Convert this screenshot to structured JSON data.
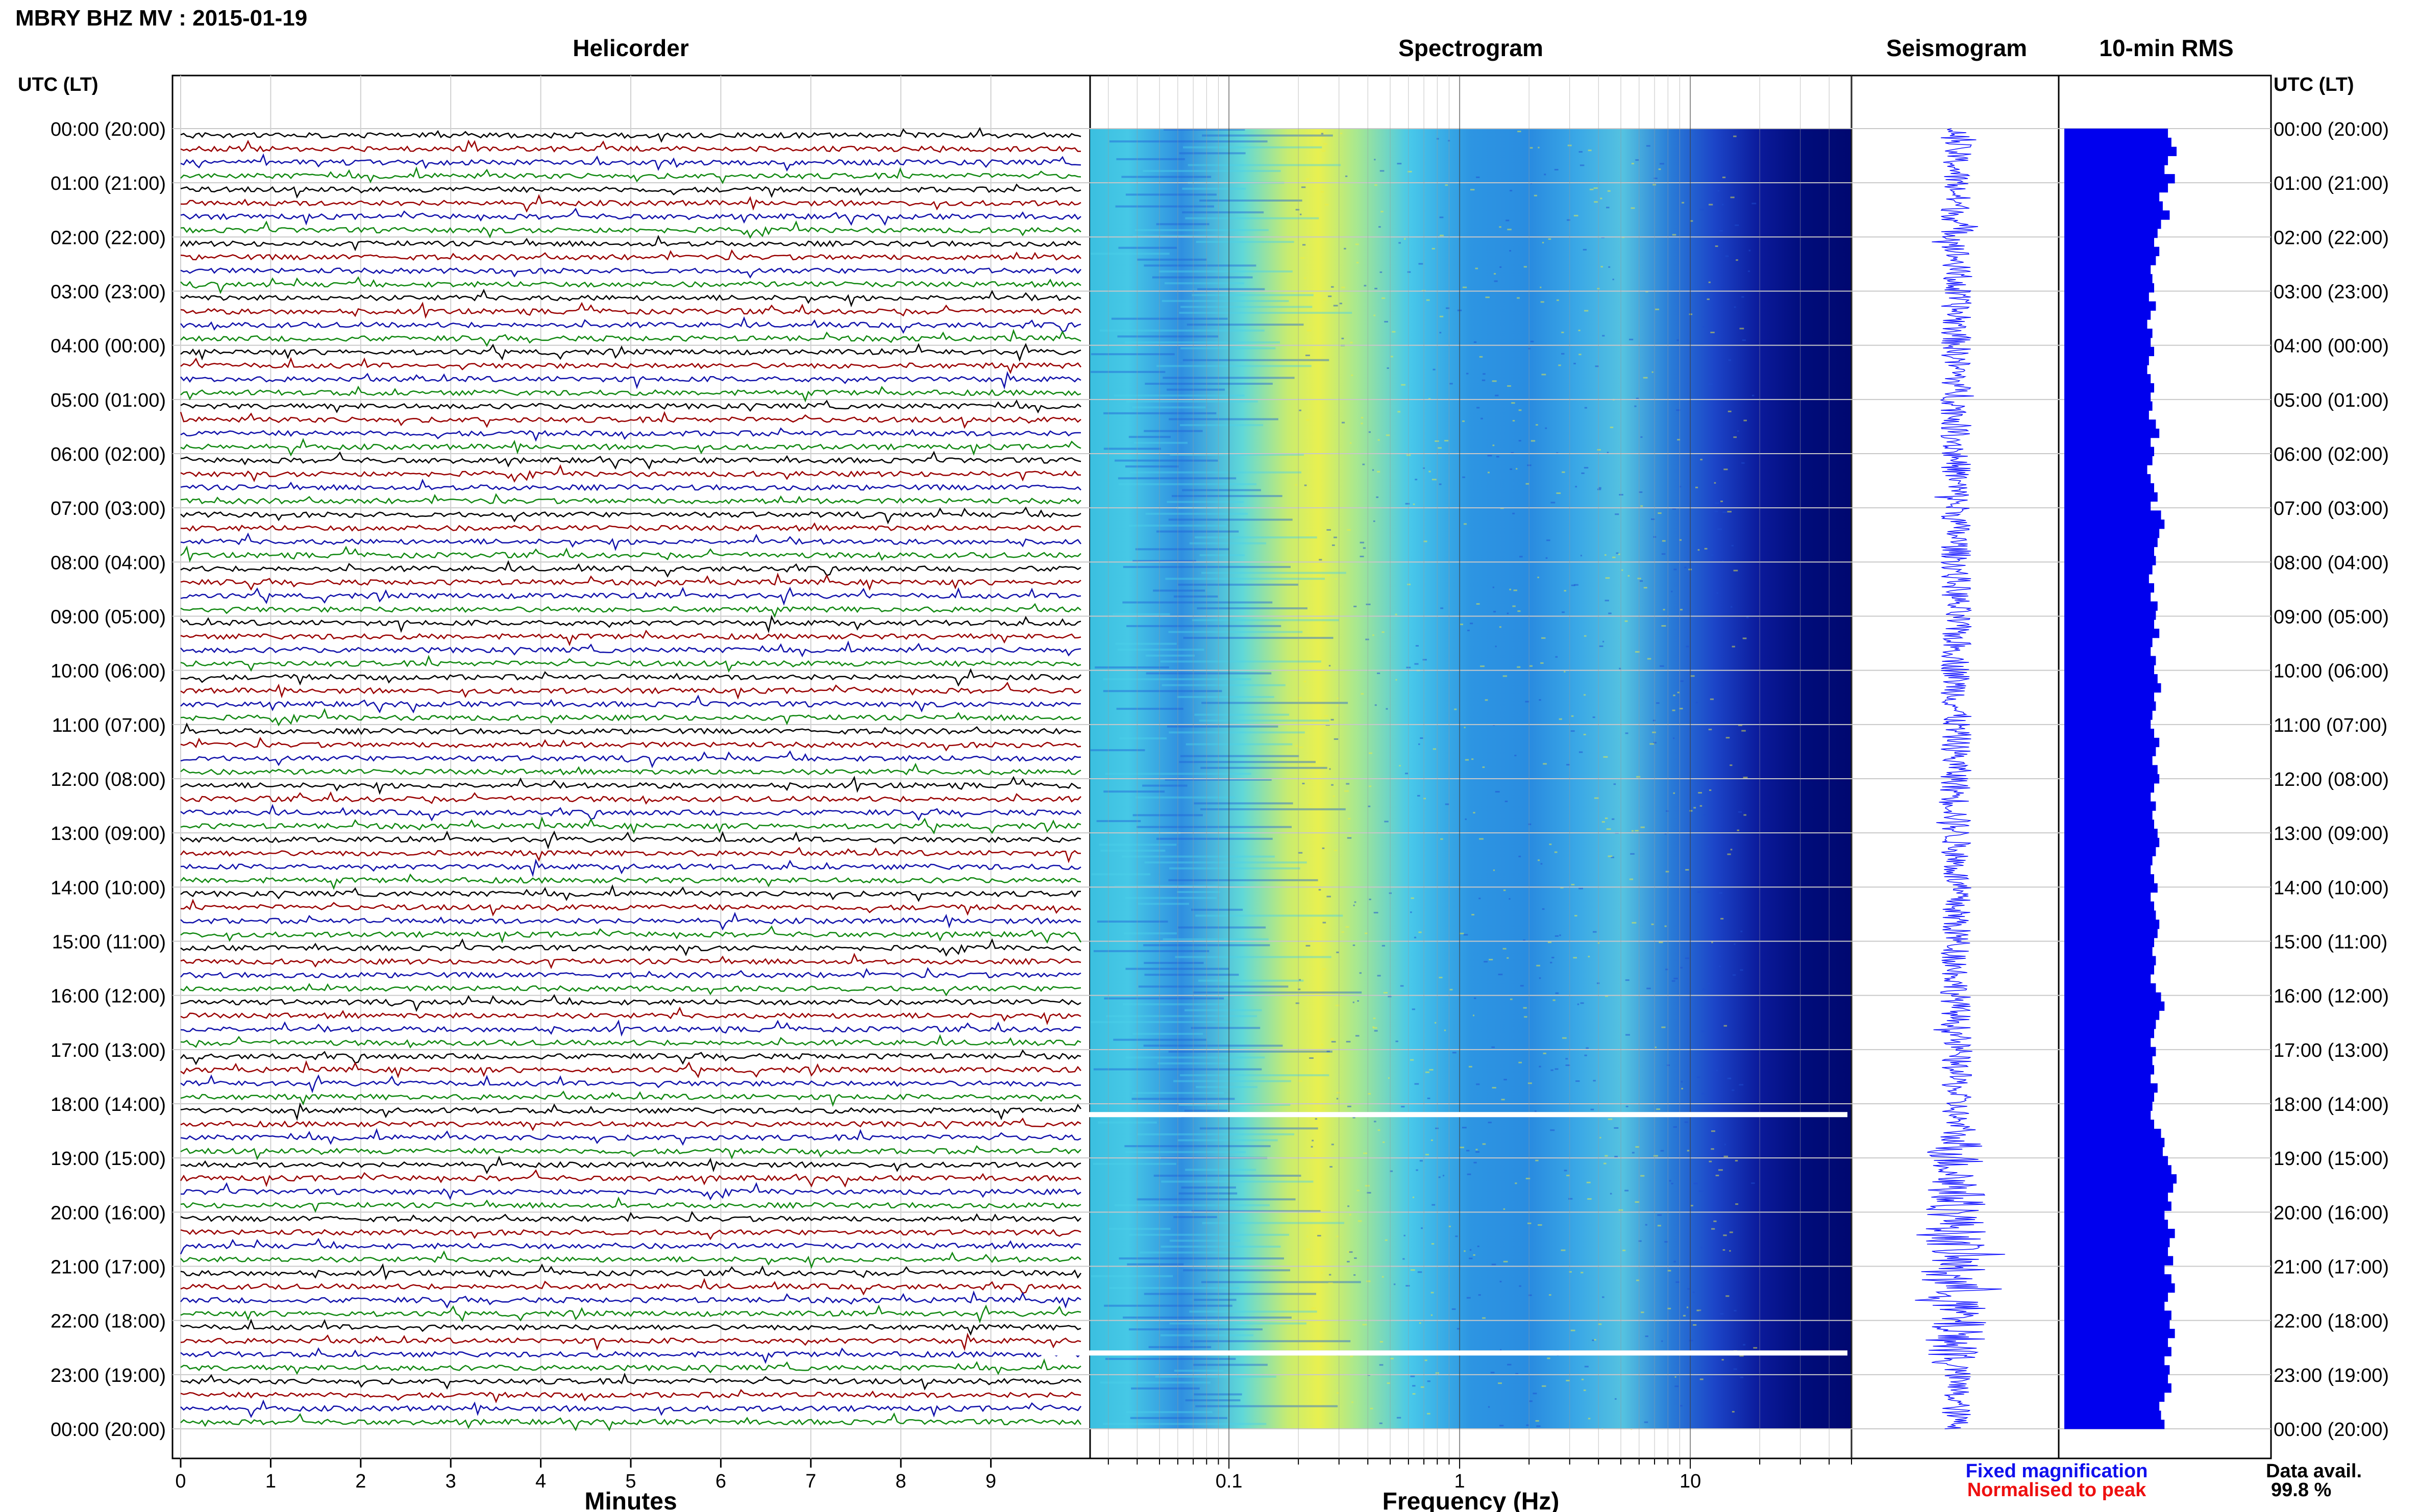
{
  "header": {
    "title": "MBRY BHZ MV : 2015-01-19"
  },
  "panels": {
    "helicorder": "Helicorder",
    "spectrogram": "Spectrogram",
    "seismogram": "Seismogram",
    "rms": "10-min RMS"
  },
  "axes": {
    "left_header": "UTC (LT)",
    "right_header": "UTC (LT)",
    "minutes_label": "Minutes",
    "frequency_label": "Frequency (Hz)"
  },
  "legend": {
    "fixed": "Fixed magnification",
    "normalised": "Normalised to peak",
    "fixed_color": "#1010ee",
    "normalised_color": "#ee1010"
  },
  "availability": {
    "label": "Data avail.",
    "value": "99.8 %"
  },
  "colors": {
    "trace_cycle": [
      "#000000",
      "#990000",
      "#1111aa",
      "#118811"
    ],
    "rms_fill": "#0000ee",
    "seismogram": "#1515ff"
  },
  "chart_data": {
    "type": "heatmap",
    "hour_labels": [
      "00:00 (20:00)",
      "01:00 (21:00)",
      "02:00 (22:00)",
      "03:00 (23:00)",
      "04:00 (00:00)",
      "05:00 (01:00)",
      "06:00 (02:00)",
      "07:00 (03:00)",
      "08:00 (04:00)",
      "09:00 (05:00)",
      "10:00 (06:00)",
      "11:00 (07:00)",
      "12:00 (08:00)",
      "13:00 (09:00)",
      "14:00 (10:00)",
      "15:00 (11:00)",
      "16:00 (12:00)",
      "17:00 (13:00)",
      "18:00 (14:00)",
      "19:00 (15:00)",
      "20:00 (16:00)",
      "21:00 (17:00)",
      "22:00 (18:00)",
      "23:00 (19:00)",
      "00:00 (20:00)"
    ],
    "minute_ticks": [
      "0",
      "1",
      "2",
      "3",
      "4",
      "5",
      "6",
      "7",
      "8",
      "9"
    ],
    "minute_range": [
      0,
      10
    ],
    "frequency_ticks": [
      "0.1",
      "1",
      "10"
    ],
    "frequency_range": [
      0.025,
      50
    ],
    "frequency_scale": "log",
    "gap_hours": [
      18.2,
      22.6
    ],
    "rms_10min": [
      0.6,
      0.62,
      0.65,
      0.6,
      0.58,
      0.64,
      0.6,
      0.55,
      0.57,
      0.61,
      0.56,
      0.54,
      0.52,
      0.55,
      0.53,
      0.5,
      0.51,
      0.52,
      0.49,
      0.53,
      0.5,
      0.48,
      0.51,
      0.5,
      0.52,
      0.49,
      0.48,
      0.5,
      0.52,
      0.5,
      0.51,
      0.49,
      0.53,
      0.55,
      0.5,
      0.52,
      0.51,
      0.48,
      0.5,
      0.52,
      0.54,
      0.5,
      0.56,
      0.58,
      0.55,
      0.54,
      0.52,
      0.53,
      0.51,
      0.49,
      0.52,
      0.5,
      0.54,
      0.53,
      0.52,
      0.55,
      0.51,
      0.5,
      0.53,
      0.52,
      0.54,
      0.56,
      0.52,
      0.53,
      0.51,
      0.5,
      0.52,
      0.55,
      0.53,
      0.51,
      0.54,
      0.55,
      0.52,
      0.5,
      0.53,
      0.51,
      0.52,
      0.54,
      0.55,
      0.53,
      0.51,
      0.5,
      0.52,
      0.54,
      0.5,
      0.52,
      0.53,
      0.55,
      0.54,
      0.52,
      0.51,
      0.53,
      0.52,
      0.5,
      0.53,
      0.56,
      0.58,
      0.55,
      0.53,
      0.52,
      0.5,
      0.53,
      0.51,
      0.52,
      0.5,
      0.54,
      0.52,
      0.51,
      0.5,
      0.52,
      0.56,
      0.58,
      0.57,
      0.6,
      0.62,
      0.65,
      0.63,
      0.6,
      0.62,
      0.58,
      0.6,
      0.64,
      0.61,
      0.6,
      0.63,
      0.58,
      0.62,
      0.64,
      0.6,
      0.58,
      0.62,
      0.61,
      0.64,
      0.6,
      0.62,
      0.58,
      0.61,
      0.6,
      0.62,
      0.58,
      0.55,
      0.56,
      0.58
    ]
  }
}
